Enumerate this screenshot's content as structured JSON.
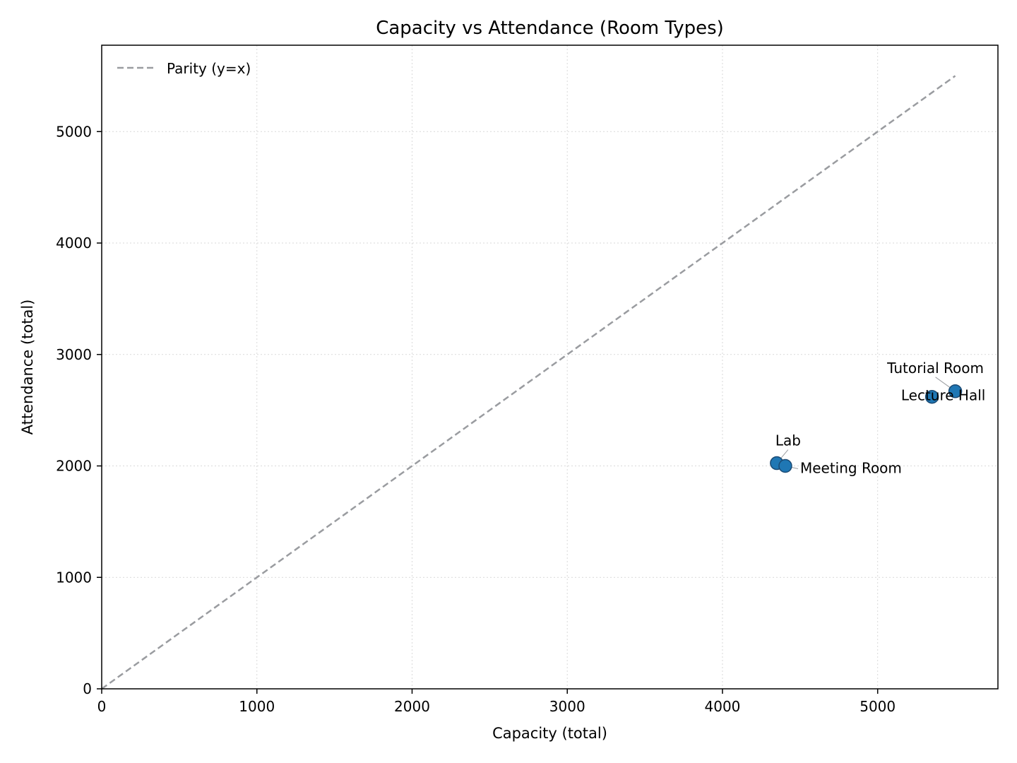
{
  "chart_data": {
    "type": "scatter",
    "title": "Capacity vs Attendance (Room Types)",
    "xlabel": "Capacity (total)",
    "ylabel": "Attendance (total)",
    "xlim": [
      0,
      5775
    ],
    "ylim": [
      0,
      5775
    ],
    "xticks": [
      0,
      1000,
      2000,
      3000,
      4000,
      5000
    ],
    "yticks": [
      0,
      1000,
      2000,
      3000,
      4000,
      5000
    ],
    "grid": true,
    "legend": {
      "placement": "top-left",
      "entries": [
        "Parity (y=x)"
      ]
    },
    "parity_line": {
      "name": "Parity (y=x)",
      "from": [
        0,
        0
      ],
      "to": [
        5500,
        5500
      ],
      "color": "#9a9ca0"
    },
    "point_color": "#1f77b4",
    "points": [
      {
        "label": "Tutorial Room",
        "x": 5500,
        "y": 2670
      },
      {
        "label": "Lecture Hall",
        "x": 5350,
        "y": 2620
      },
      {
        "label": "Lab",
        "x": 4350,
        "y": 2025
      },
      {
        "label": "Meeting Room",
        "x": 4405,
        "y": 2000
      }
    ]
  }
}
